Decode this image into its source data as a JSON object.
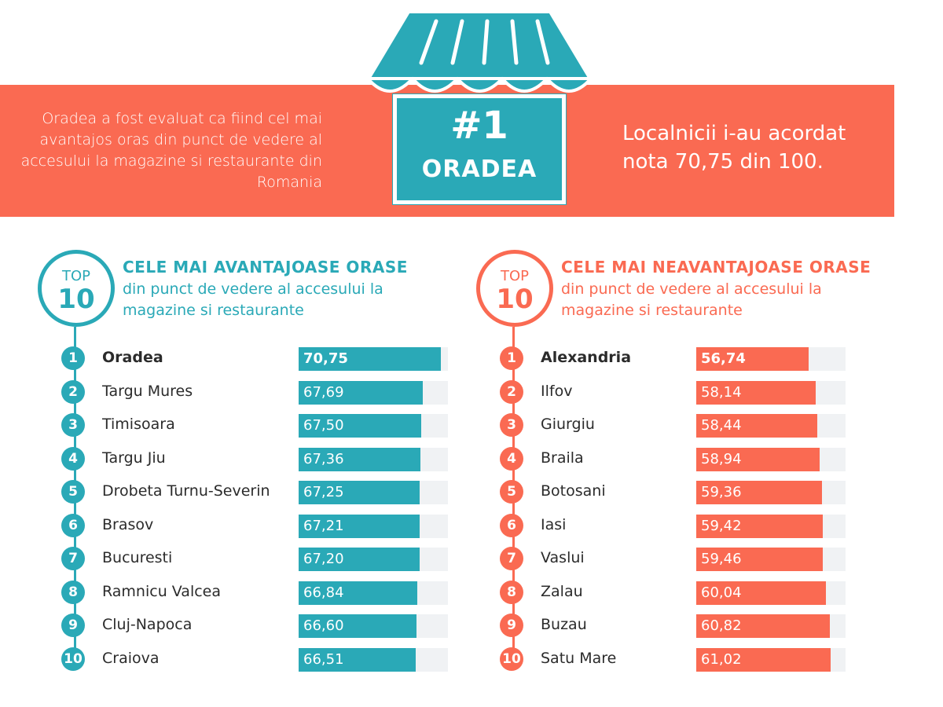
{
  "colors": {
    "coral": "#fa6a52",
    "teal": "#2aa9b7",
    "track": "#f0f2f4",
    "text": "#2b2b2b"
  },
  "banner": {
    "left_text": "Oradea a fost evaluat ca fiind cel mai avantajos oras din punct de vedere al accesului la magazine si restaurante din Romania",
    "right_text": "Localnicii i-au acordat nota 70,75 din 100.",
    "rank": "#1",
    "city": "ORADEA",
    "icon": "storefront-icon"
  },
  "chart_data": [
    {
      "type": "bar",
      "orientation": "horizontal",
      "badge_top": "TOP",
      "badge_num": "10",
      "title": "CELE MAI AVANTAJOASE ORASE",
      "subtitle": "din punct de vedere al accesului la magazine si restaurante",
      "color": "#2aa9b7",
      "ranks": [
        "1",
        "2",
        "3",
        "4",
        "5",
        "6",
        "7",
        "8",
        "9",
        "10"
      ],
      "categories": [
        "Oradea",
        "Targu Mures",
        "Timisoara",
        "Targu Jiu",
        "Drobeta Turnu-Severin",
        "Brasov",
        "Bucuresti",
        "Ramnicu Valcea",
        "Cluj-Napoca",
        "Craiova"
      ],
      "labels": [
        "70,75",
        "67,69",
        "67,50",
        "67,36",
        "67,25",
        "67,21",
        "67,20",
        "66,84",
        "66,60",
        "66,51"
      ],
      "values": [
        70.75,
        67.69,
        67.5,
        67.36,
        67.25,
        67.21,
        67.2,
        66.84,
        66.6,
        66.51
      ],
      "xlim": [
        0,
        100
      ]
    },
    {
      "type": "bar",
      "orientation": "horizontal",
      "badge_top": "TOP",
      "badge_num": "10",
      "title": "CELE MAI NEAVANTAJOASE ORASE",
      "subtitle": "din punct de vedere al accesului la magazine si restaurante",
      "color": "#fa6a52",
      "ranks": [
        "1",
        "2",
        "3",
        "4",
        "5",
        "6",
        "7",
        "8",
        "9",
        "10"
      ],
      "categories": [
        "Alexandria",
        "Ilfov",
        "Giurgiu",
        "Braila",
        "Botosani",
        "Iasi",
        "Vaslui",
        "Zalau",
        "Buzau",
        "Satu Mare"
      ],
      "labels": [
        "56,74",
        "58,14",
        "58,44",
        "58,94",
        "59,36",
        "59,42",
        "59,46",
        "60,04",
        "60,82",
        "61,02"
      ],
      "values": [
        56.74,
        58.14,
        58.44,
        58.94,
        59.36,
        59.42,
        59.46,
        60.04,
        60.82,
        61.02
      ],
      "xlim": [
        0,
        100
      ]
    }
  ]
}
